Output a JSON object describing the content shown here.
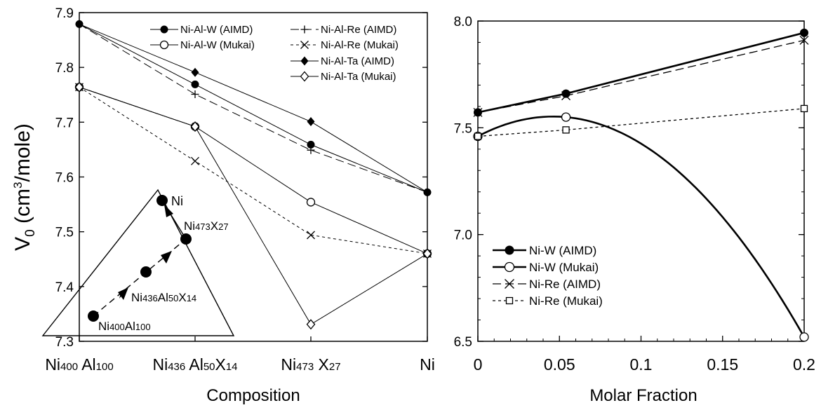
{
  "chart_data": [
    {
      "type": "line",
      "ylabel_main": "V",
      "ylabel_sub": "0",
      "ylabel_unit_pre": " (cm",
      "ylabel_unit_sup": "3",
      "ylabel_unit_post": "/mole)",
      "xlabel": "Composition",
      "ylim": [
        7.3,
        7.9
      ],
      "yticks": [
        "7.3",
        "7.4",
        "7.5",
        "7.6",
        "7.7",
        "7.8",
        "7.9"
      ],
      "categories": [
        {
          "main": "Ni",
          "sub": "400",
          "rest": " Al",
          "sub2": "100",
          "rest2": "",
          "sub3": ""
        },
        {
          "main": "Ni",
          "sub": "436",
          "rest": " Al",
          "sub2": "50",
          "rest2": "X",
          "sub3": "14"
        },
        {
          "main": "Ni",
          "sub": "473",
          "rest": " X",
          "sub2": "27",
          "rest2": "",
          "sub3": ""
        },
        {
          "main": "Ni",
          "sub": "",
          "rest": "",
          "sub2": "",
          "rest2": "",
          "sub3": ""
        }
      ],
      "series": [
        {
          "name": "Ni-Al-W (AIMD)",
          "marker": "filled-circle",
          "line": "solid",
          "values": [
            7.879,
            7.769,
            7.659,
            7.572
          ]
        },
        {
          "name": "Ni-Al-W (Mukai)",
          "marker": "open-circle",
          "line": "solid",
          "values": [
            7.764,
            7.692,
            7.554,
            7.46
          ]
        },
        {
          "name": "Ni-Al-Re (AIMD)",
          "marker": "plus",
          "line": "dashed",
          "values": [
            7.879,
            7.751,
            7.649,
            7.572
          ]
        },
        {
          "name": "Ni-Al-Re (Mukai)",
          "marker": "cross",
          "line": "dotted",
          "values": [
            7.764,
            7.629,
            7.494,
            7.46
          ]
        },
        {
          "name": "Ni-Al-Ta (AIMD)",
          "marker": "filled-diamond",
          "line": "solid",
          "values": [
            7.879,
            7.791,
            7.701,
            7.572
          ]
        },
        {
          "name": "Ni-Al-Ta (Mukai)",
          "marker": "open-diamond",
          "line": "solid",
          "values": [
            7.764,
            7.692,
            7.331,
            7.46
          ]
        }
      ],
      "inset": {
        "top_label": "Ni",
        "mid_label": {
          "main": "Ni",
          "sub": "473",
          "rest": "X",
          "sub2": "27"
        },
        "inner_label": {
          "main": "Ni",
          "sub": "436",
          "rest": "Al",
          "sub2": "50",
          "rest2": "X",
          "sub3": "14"
        },
        "bottom_label": {
          "main": "Ni",
          "sub": "400",
          "rest": "Al",
          "sub2": "100"
        }
      }
    },
    {
      "type": "line",
      "xlabel": "Molar Fraction",
      "xlim": [
        0,
        0.2
      ],
      "ylim": [
        6.5,
        8.0
      ],
      "xticks": [
        "0",
        "0.05",
        "0.1",
        "0.15",
        "0.2"
      ],
      "yticks": [
        "6.5",
        "7.0",
        "7.5",
        "8.0"
      ],
      "x": [
        0,
        0.054,
        0.2
      ],
      "series": [
        {
          "name": "Ni-W (AIMD)",
          "marker": "filled-circle",
          "line": "solid-thick",
          "values": [
            7.572,
            7.66,
            7.945
          ]
        },
        {
          "name": "Ni-W (Mukai)",
          "marker": "open-circle",
          "line": "solid-thick",
          "values": [
            7.46,
            7.55,
            6.52
          ]
        },
        {
          "name": "Ni-Re (AIMD)",
          "marker": "cross",
          "line": "dashed",
          "values": [
            7.572,
            7.65,
            7.91
          ]
        },
        {
          "name": "Ni-Re (Mukai)",
          "marker": "open-square",
          "line": "dotted",
          "values": [
            7.46,
            7.49,
            7.59
          ]
        }
      ]
    }
  ]
}
